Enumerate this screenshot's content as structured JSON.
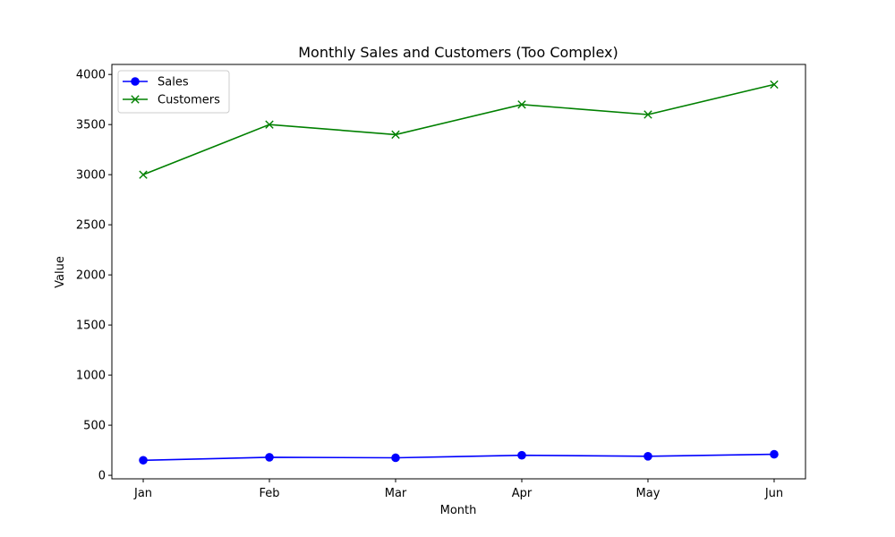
{
  "chart_data": {
    "type": "line",
    "title": "Monthly Sales and Customers (Too Complex)",
    "xlabel": "Month",
    "ylabel": "Value",
    "categories": [
      "Jan",
      "Feb",
      "Mar",
      "Apr",
      "May",
      "Jun"
    ],
    "ylim": [
      -35,
      4100
    ],
    "yticks": [
      0,
      500,
      1000,
      1500,
      2000,
      2500,
      3000,
      3500,
      4000
    ],
    "grid": false,
    "legend_position": "top-left",
    "series": [
      {
        "name": "Sales",
        "values": [
          150,
          180,
          175,
          200,
          190,
          210
        ],
        "color": "#0000ff",
        "marker": "circle"
      },
      {
        "name": "Customers",
        "values": [
          3000,
          3500,
          3400,
          3700,
          3600,
          3900
        ],
        "color": "#008000",
        "marker": "x"
      }
    ]
  }
}
